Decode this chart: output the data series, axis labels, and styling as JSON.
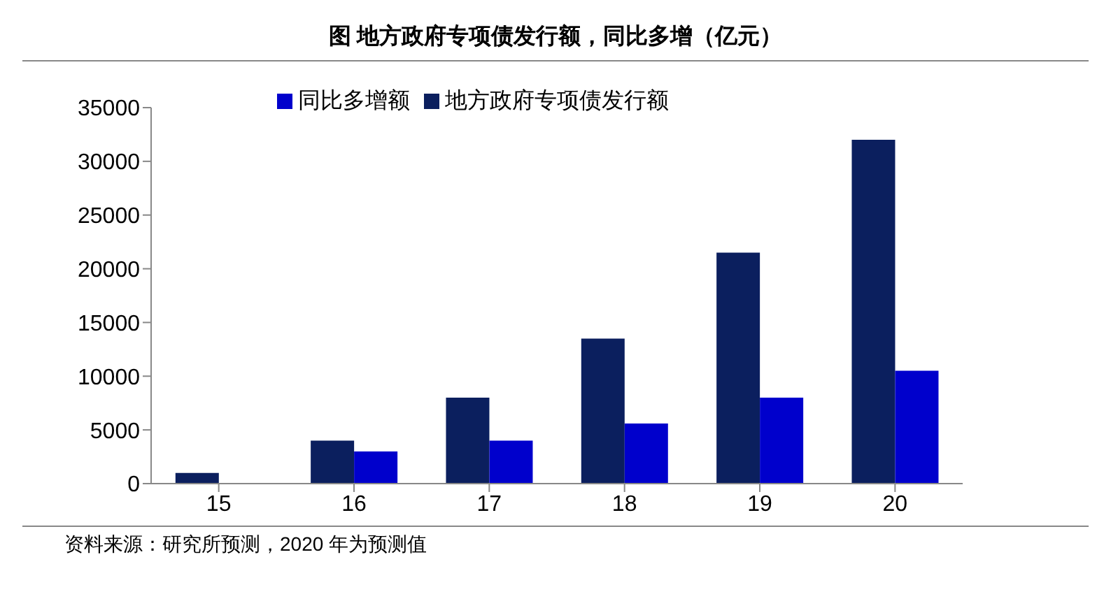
{
  "chart_data": {
    "type": "bar",
    "title": "图  地方政府专项债发行额，同比多增（亿元）",
    "categories": [
      "15",
      "16",
      "17",
      "18",
      "19",
      "20"
    ],
    "series": [
      {
        "name": "地方政府专项债发行额",
        "color": "#0b1f5e",
        "values": [
          1000,
          4000,
          8000,
          13500,
          21500,
          32000
        ]
      },
      {
        "name": "同比多增额",
        "color": "#0000cc",
        "values": [
          null,
          3000,
          4000,
          5600,
          8000,
          10500
        ]
      }
    ],
    "ylim": [
      0,
      35000
    ],
    "yticks": [
      0,
      5000,
      10000,
      15000,
      20000,
      25000,
      30000,
      35000
    ],
    "grid": false,
    "legend": "top left",
    "annotations": [
      "资料来源：研究所预测，2020 年为预测值"
    ]
  }
}
